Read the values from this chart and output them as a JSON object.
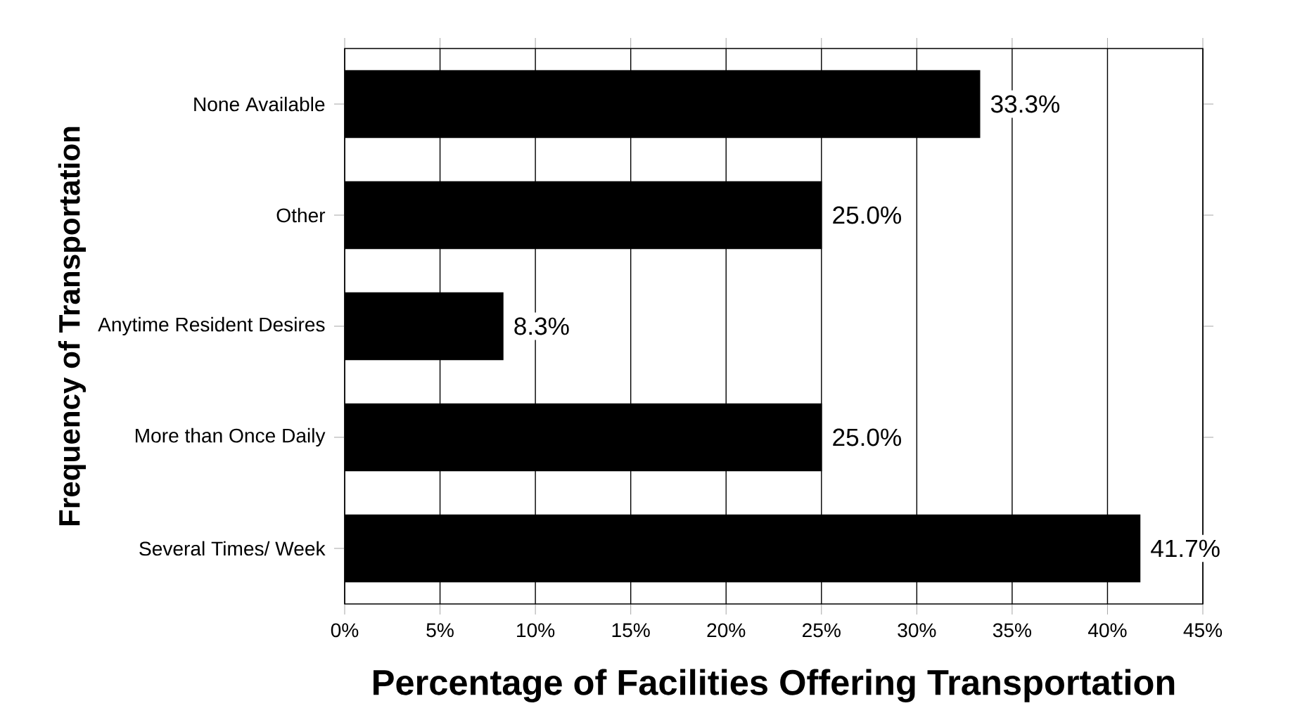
{
  "chart_data": {
    "type": "bar",
    "orientation": "horizontal",
    "xlabel": "Percentage of Facilities Offering Transportation",
    "ylabel": "Frequency of Transportation",
    "categories": [
      "None Available",
      "Other",
      "Anytime Resident Desires",
      "More than Once Daily",
      "Several Times/ Week"
    ],
    "values": [
      33.3,
      25.0,
      8.3,
      25.0,
      41.7
    ],
    "value_labels": [
      "33.3%",
      "25.0%",
      "8.3%",
      "25.0%",
      "41.7%"
    ],
    "color": "#000000",
    "xlim": [
      0,
      45
    ],
    "xticks": [
      {
        "value": 0,
        "label": "0%"
      },
      {
        "value": 5,
        "label": "5%"
      },
      {
        "value": 10,
        "label": "10%"
      },
      {
        "value": 15,
        "label": "15%"
      },
      {
        "value": 20,
        "label": "20%"
      },
      {
        "value": 25,
        "label": "25%"
      },
      {
        "value": 30,
        "label": "30%"
      },
      {
        "value": 35,
        "label": "35%"
      },
      {
        "value": 40,
        "label": "40%"
      },
      {
        "value": 45,
        "label": "45%"
      }
    ],
    "grid": "x"
  }
}
